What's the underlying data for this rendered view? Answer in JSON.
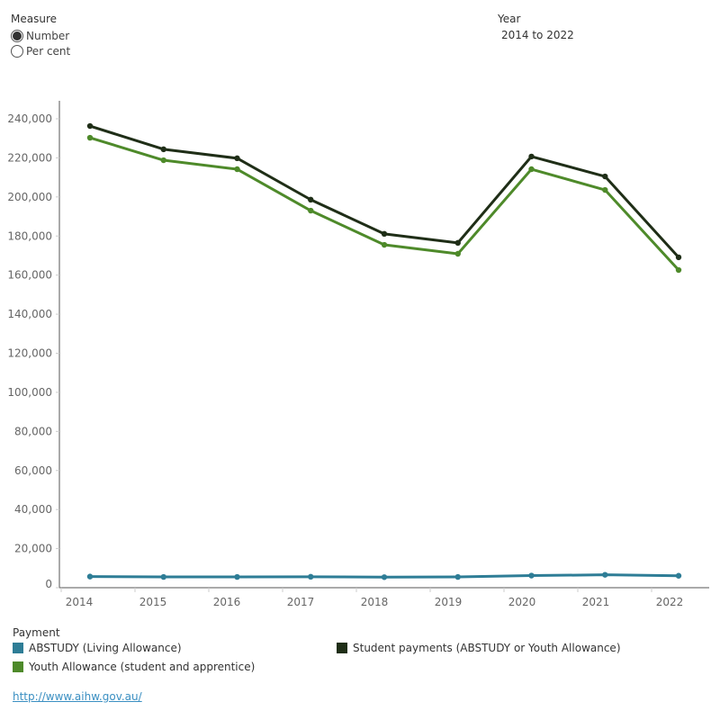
{
  "filters": {
    "measure_label": "Measure",
    "measure_options": [
      "Number",
      "Per cent"
    ],
    "measure_selected": "Number",
    "year_label": "Year",
    "year_value": "2014 to 2022"
  },
  "legend": {
    "title": "Payment"
  },
  "link": "http://www.aihw.gov.au/",
  "chart_data": {
    "type": "line",
    "x_ticks": [
      "2014",
      "2015",
      "2016",
      "2017",
      "2018",
      "2019",
      "2020",
      "2021",
      "2022"
    ],
    "x": [
      2014,
      2015,
      2016,
      2017,
      2018,
      2019,
      2020,
      2021,
      2022
    ],
    "y_ticks": [
      "0",
      "20,000",
      "40,000",
      "60,000",
      "80,000",
      "100,000",
      "120,000",
      "140,000",
      "160,000",
      "180,000",
      "200,000",
      "220,000",
      "240,000"
    ],
    "ylim": [
      0,
      240000
    ],
    "series": [
      {
        "name": "ABSTUDY (Living Allowance)",
        "color": "#2e7d96",
        "values": [
          5700,
          5500,
          5500,
          5600,
          5400,
          5500,
          6200,
          6600,
          6100
        ]
      },
      {
        "name": "Youth Allowance (student and apprentice)",
        "color": "#4e8a2a",
        "values": [
          230300,
          218800,
          214200,
          193000,
          175500,
          170900,
          214200,
          203600,
          162600
        ]
      },
      {
        "name": "Student payments (ABSTUDY or Youth Allowance)",
        "color": "#1f2e17",
        "values": [
          236300,
          224400,
          219800,
          198600,
          181100,
          176500,
          220700,
          210500,
          169100
        ]
      }
    ]
  }
}
